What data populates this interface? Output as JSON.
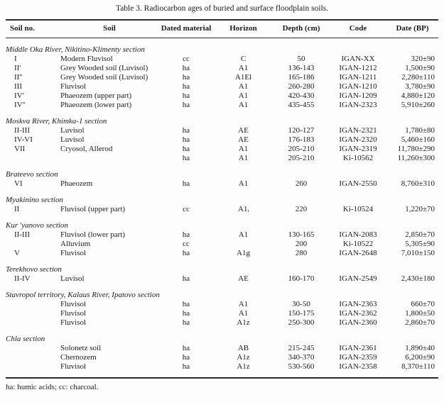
{
  "colors": {
    "text": "#1c1c1c",
    "rule": "#2b2b2b",
    "background": "#fdfdfd"
  },
  "table": {
    "title": "Table 3. Radiocarbon ages of buried and surface floodplain soils.",
    "columns": [
      "Soil no.",
      "Soil",
      "Dated material",
      "Horizon",
      "Depth (cm)",
      "Code",
      "Date (BP)"
    ],
    "sections": [
      {
        "heading": "Middle Oka River, Nikitino-Klimenty section",
        "rows": [
          [
            "I",
            "Modern Fluvisol",
            "cc",
            "C",
            "50",
            "IGAN-XX",
            "320±90"
          ],
          [
            "II'",
            "Grey Wooded soil (Luvisol)",
            "ha",
            "A1",
            "136-143",
            "IGAN-1212",
            "1,500±90"
          ],
          [
            "II''",
            "Grey Wooded soil (Luvisol)",
            "ha",
            "A1El",
            "165-186",
            "IGAN-1211",
            "2,280±110"
          ],
          [
            "III",
            "Fluvisol",
            "ha",
            "A1",
            "260-280",
            "IGAN-1210",
            "3,780±90"
          ],
          [
            "IV'",
            "Phaeozem (upper part)",
            "ha",
            "A1",
            "420-430",
            "IGAN-1209",
            "4,880±120"
          ],
          [
            "IV''",
            "Phaeozem (lower part)",
            "ha",
            "A1",
            "435-455",
            "IGAN-2323",
            "5,910±260"
          ]
        ]
      },
      {
        "heading": "Moskva River, Khimka-1 section",
        "rows": [
          [
            "II-III",
            "Luvisol",
            "ha",
            "AE",
            "120-127",
            "IGAN-2321",
            "1,780±80"
          ],
          [
            "IV-VI",
            "Luvisol",
            "ha",
            "AE",
            "176-183",
            "IGAN-2320",
            "5,460±160"
          ],
          [
            "VII",
            "Cryosol, Allerod",
            "ha",
            "A1",
            "205-210",
            "IGAN-2319",
            "11,780±290"
          ],
          [
            "",
            "",
            "ha",
            "A1",
            "205-210",
            "Ki-10562",
            "11,260±300"
          ]
        ]
      },
      {
        "heading": "Brateevo section",
        "rows": [
          [
            "VI",
            "Phaeozem",
            "ha",
            "A1",
            "260",
            "IGAN-2550",
            "8,760±310"
          ]
        ]
      },
      {
        "heading": "Myakinino section",
        "rows": [
          [
            "II",
            "Fluvisol (upper part)",
            "cc",
            "A1ᵢ",
            "220",
            "Ki-10524",
            "1,220±70"
          ]
        ]
      },
      {
        "heading": "Kur 'yanovo section",
        "rows": [
          [
            "II-III",
            "Fluvisol (lower part)",
            "ha",
            "A1",
            "130-165",
            "IGAN-2083",
            "2,850±70"
          ],
          [
            "",
            "Alluvium",
            "cc",
            "",
            "200",
            "Ki-10522",
            "5,305±90"
          ],
          [
            "V",
            "Fluvisol",
            "ha",
            "A1g",
            "280",
            "IGAN-2648",
            "7,010±150"
          ]
        ]
      },
      {
        "heading": "Terekhovo section",
        "rows": [
          [
            "II-IV",
            "Luvisol",
            "ha",
            "AE",
            "160-170",
            "IGAN-2549",
            "2,430±180"
          ]
        ]
      },
      {
        "heading": "Stavropol territory, Kalaus River, Ipatovo section",
        "rows": [
          [
            "",
            "Fluvisol",
            "ha",
            "A1",
            "30-50",
            "IGAN-2363",
            "660±70"
          ],
          [
            "",
            "Fluvisol",
            "ha",
            "A1",
            "150-175",
            "IGAN-2362",
            "1,800±50"
          ],
          [
            "",
            "Fluvisol",
            "ha",
            "A1z",
            "250-300",
            "IGAN-2360",
            "2,860±70"
          ]
        ]
      },
      {
        "heading": "Chla section",
        "rows": [
          [
            "",
            "Solonetz soil",
            "ha",
            "AB",
            "215-245",
            "IGAN-2361",
            "1,890±40"
          ],
          [
            "",
            "Chernozem",
            "ha",
            "A1z",
            "340-370",
            "IGAN-2359",
            "6,200±90"
          ],
          [
            "",
            "Fluvisol",
            "ha",
            "A1z",
            "530-560",
            "IGAN-2358",
            "8,370±110"
          ]
        ]
      }
    ],
    "footnote": "ha: humic acids; cc: charcoal."
  }
}
